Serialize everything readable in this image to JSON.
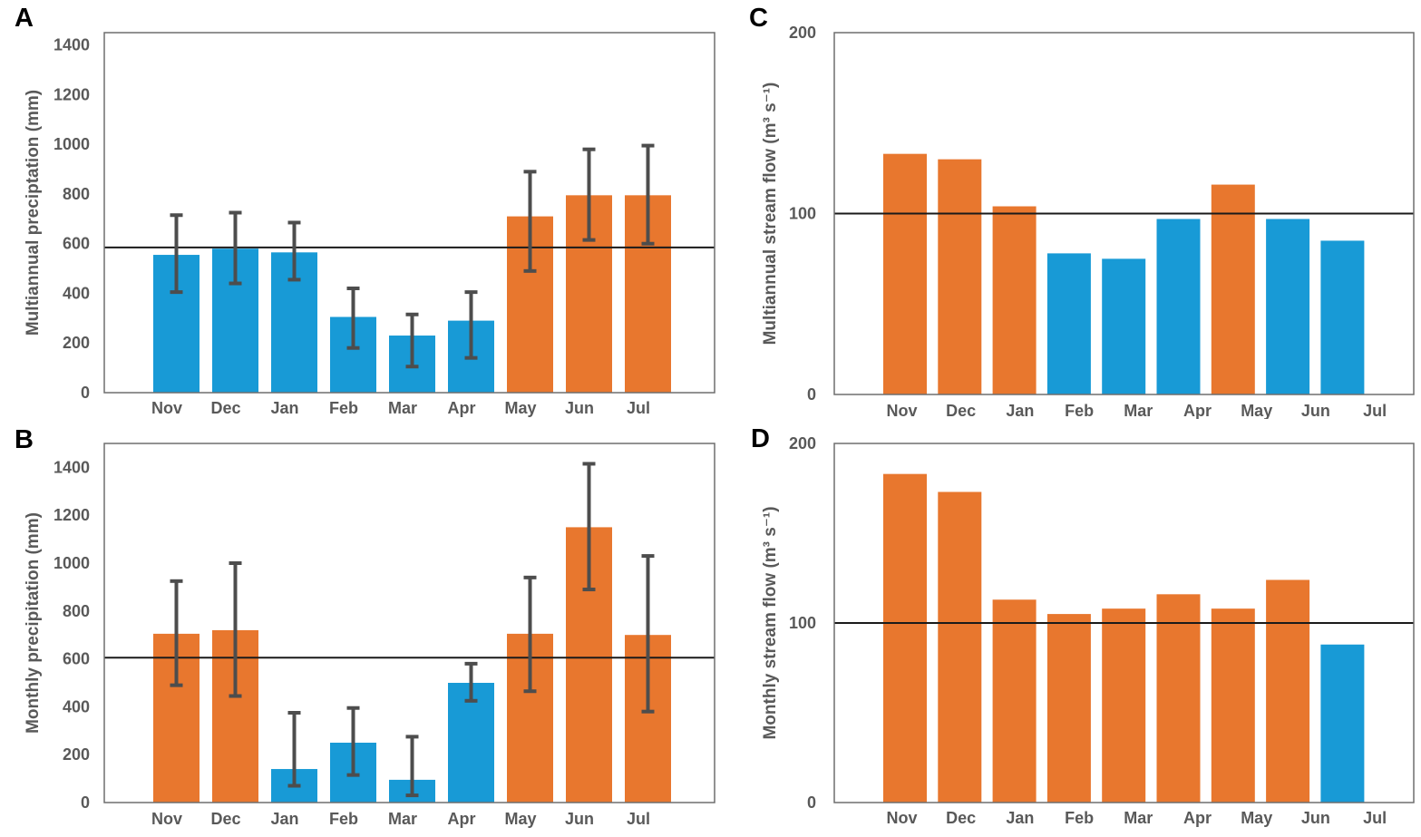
{
  "figure": {
    "background": "#FFFFFF",
    "colors": {
      "orange": "#E8772E",
      "blue": "#189AD6",
      "error_bar": "#4D4D4D",
      "axis_text": "#595959",
      "plot_border": "#6E6E6E",
      "reference_line": "#1A1A1A",
      "panel_letter": "#000000"
    },
    "color_meaning": {
      "orange": "bar above reference line",
      "blue": "bar below reference line"
    }
  },
  "chart_data": [
    {
      "panel": "A",
      "type": "bar",
      "title": "",
      "xlabel": "",
      "ylabel": "Multiannual preciptation (mm)",
      "categories": [
        "Nov",
        "Dec",
        "Jan",
        "Feb",
        "Mar",
        "Apr",
        "May",
        "Jun",
        "Jul"
      ],
      "values": [
        555,
        580,
        565,
        305,
        230,
        290,
        710,
        795,
        795
      ],
      "error_low": [
        405,
        440,
        455,
        180,
        105,
        140,
        490,
        615,
        600
      ],
      "error_high": [
        715,
        725,
        685,
        420,
        315,
        405,
        890,
        980,
        995
      ],
      "bar_colors": [
        "blue",
        "blue",
        "blue",
        "blue",
        "blue",
        "blue",
        "orange",
        "orange",
        "orange"
      ],
      "yticks": [
        0,
        200,
        400,
        600,
        800,
        1000,
        1200,
        1400
      ],
      "ylim": [
        0,
        1450
      ],
      "ref_line": 585,
      "grid": false,
      "legend": null
    },
    {
      "panel": "B",
      "type": "bar",
      "title": "",
      "xlabel": "",
      "ylabel": "Monthly precipitation (mm)",
      "categories": [
        "Nov",
        "Dec",
        "Jan",
        "Feb",
        "Mar",
        "Apr",
        "May",
        "Jun",
        "Jul"
      ],
      "values": [
        705,
        720,
        140,
        250,
        95,
        500,
        705,
        1150,
        700
      ],
      "error_low": [
        490,
        445,
        70,
        115,
        30,
        425,
        465,
        890,
        380
      ],
      "error_high": [
        925,
        1000,
        375,
        395,
        275,
        580,
        940,
        1415,
        1030
      ],
      "bar_colors": [
        "orange",
        "orange",
        "blue",
        "blue",
        "blue",
        "blue",
        "orange",
        "orange",
        "orange"
      ],
      "yticks": [
        0,
        200,
        400,
        600,
        800,
        1000,
        1200,
        1400
      ],
      "ylim": [
        0,
        1500
      ],
      "ref_line": 605,
      "grid": false,
      "legend": null
    },
    {
      "panel": "C",
      "type": "bar",
      "title": "",
      "xlabel": "",
      "ylabel": "Multiannual stream flow (m³ s⁻¹)",
      "categories": [
        "Nov",
        "Dec",
        "Jan",
        "Feb",
        "Mar",
        "Apr",
        "May",
        "Jun",
        "Jul"
      ],
      "values": [
        133,
        130,
        104,
        78,
        75,
        97,
        116,
        97,
        85
      ],
      "error_low": null,
      "error_high": null,
      "bar_colors": [
        "orange",
        "orange",
        "orange",
        "blue",
        "blue",
        "blue",
        "orange",
        "blue",
        "blue"
      ],
      "yticks": [
        0,
        100,
        200
      ],
      "ylim": [
        0,
        200
      ],
      "ref_line": 100,
      "grid": false,
      "legend": null
    },
    {
      "panel": "D",
      "type": "bar",
      "title": "",
      "xlabel": "",
      "ylabel": "Monthly stream flow (m³ s⁻¹)",
      "categories": [
        "Nov",
        "Dec",
        "Jan",
        "Feb",
        "Mar",
        "Apr",
        "May",
        "Jun",
        "Jul"
      ],
      "values": [
        183,
        173,
        113,
        105,
        108,
        116,
        108,
        124,
        88
      ],
      "error_low": null,
      "error_high": null,
      "bar_colors": [
        "orange",
        "orange",
        "orange",
        "orange",
        "orange",
        "orange",
        "orange",
        "orange",
        "blue"
      ],
      "yticks": [
        0,
        100,
        200
      ],
      "ylim": [
        0,
        200
      ],
      "ref_line": 100,
      "grid": false,
      "legend": null
    }
  ]
}
